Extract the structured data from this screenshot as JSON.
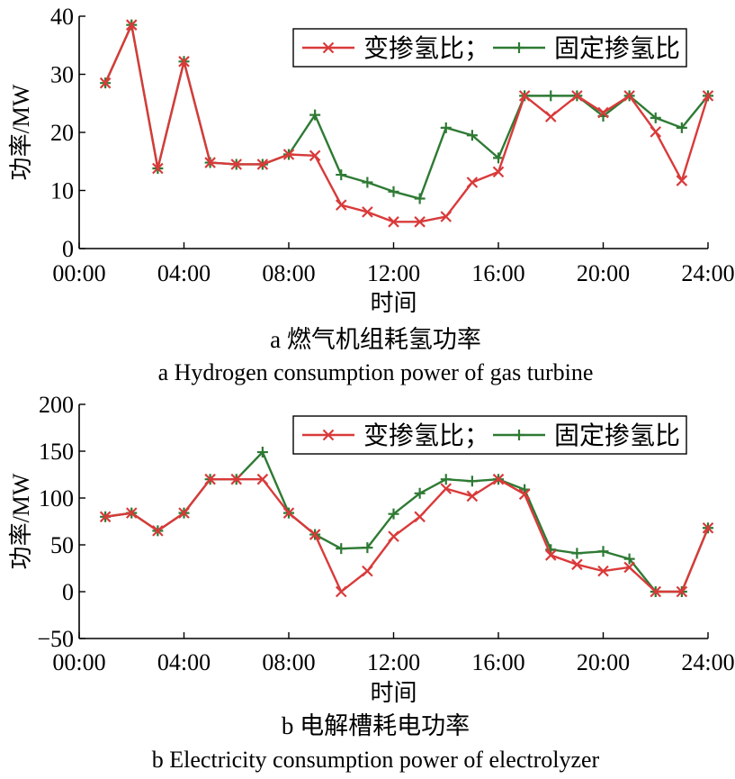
{
  "charts": [
    {
      "caption_cn": "a  燃气机组耗氢功率",
      "caption_en": "a  Hydrogen consumption power of gas turbine"
    },
    {
      "caption_cn": "b  电解槽耗电功率",
      "caption_en": "b  Electricity consumption power of electrolyzer"
    }
  ],
  "colors": {
    "variable": "#d93a3a",
    "fixed": "#2e7a34"
  },
  "chart_data": [
    {
      "type": "line",
      "xlabel": "时间",
      "ylabel": "功率/MW",
      "xlim": [
        0,
        24
      ],
      "ylim": [
        0,
        40
      ],
      "x_ticks": [
        0,
        4,
        8,
        12,
        16,
        20,
        24
      ],
      "x_tick_labels": [
        "00:00",
        "04:00",
        "08:00",
        "12:00",
        "16:00",
        "20:00",
        "24:00"
      ],
      "y_ticks": [
        0,
        10,
        20,
        30,
        40
      ],
      "grid": false,
      "legend_position": "top-right",
      "x": [
        1,
        2,
        3,
        4,
        5,
        6,
        7,
        8,
        9,
        10,
        11,
        12,
        13,
        14,
        15,
        16,
        17,
        18,
        19,
        20,
        21,
        22,
        23,
        24
      ],
      "series": [
        {
          "name": "变掺氢比",
          "marker": "x",
          "values": [
            28.5,
            38.5,
            13.8,
            32.2,
            14.8,
            14.5,
            14.5,
            16.2,
            16.0,
            7.5,
            6.3,
            4.6,
            4.6,
            5.5,
            11.4,
            13.2,
            26.3,
            22.7,
            26.3,
            23.4,
            26.3,
            20.1,
            11.7,
            26.3
          ]
        },
        {
          "name": "固定掺氢比",
          "marker": "+",
          "values": [
            28.5,
            38.5,
            13.8,
            32.2,
            14.8,
            14.5,
            14.5,
            16.2,
            23.0,
            12.7,
            11.4,
            9.8,
            8.6,
            20.8,
            19.5,
            15.6,
            26.3,
            26.3,
            26.3,
            22.8,
            26.3,
            22.5,
            20.8,
            26.3
          ]
        }
      ]
    },
    {
      "type": "line",
      "xlabel": "时间",
      "ylabel": "功率/MW",
      "xlim": [
        0,
        24
      ],
      "ylim": [
        -50,
        200
      ],
      "x_ticks": [
        0,
        4,
        8,
        12,
        16,
        20,
        24
      ],
      "x_tick_labels": [
        "00:00",
        "04:00",
        "08:00",
        "12:00",
        "16:00",
        "20:00",
        "24:00"
      ],
      "y_ticks": [
        -50,
        0,
        50,
        100,
        150,
        200
      ],
      "y_tick_labels": [
        "−50",
        "0",
        "50",
        "100",
        "150",
        "200"
      ],
      "grid": false,
      "legend_position": "top-right",
      "x": [
        1,
        2,
        3,
        4,
        5,
        6,
        7,
        8,
        9,
        10,
        11,
        12,
        13,
        14,
        15,
        16,
        17,
        18,
        19,
        20,
        21,
        22,
        23,
        24
      ],
      "series": [
        {
          "name": "变掺氢比",
          "marker": "x",
          "values": [
            80,
            84,
            65,
            84,
            120,
            120,
            120,
            84,
            61,
            0,
            22,
            59,
            80,
            110,
            102,
            120,
            104,
            39,
            29,
            22,
            26,
            0,
            0,
            68
          ]
        },
        {
          "name": "固定掺氢比",
          "marker": "+",
          "values": [
            80,
            84,
            65,
            84,
            120,
            120,
            149,
            84,
            61,
            46,
            47,
            83,
            105,
            120,
            118,
            120,
            109,
            45,
            41,
            43,
            35,
            0,
            0,
            68
          ]
        }
      ]
    }
  ]
}
